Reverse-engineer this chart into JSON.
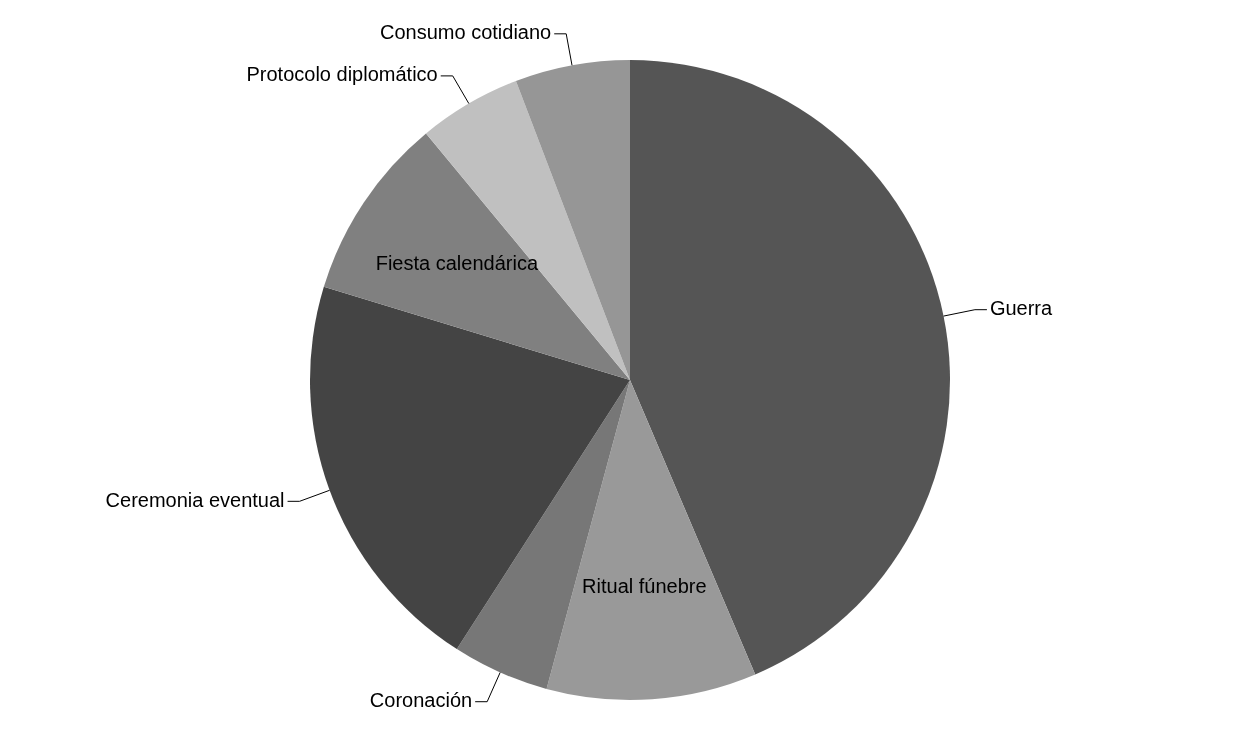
{
  "chart_data": {
    "type": "pie",
    "categories": [
      "Guerra",
      "Ritual fúnebre",
      "Coronación",
      "Ceremonia eventual",
      "Fiesta calendárica",
      "Protocolo diplomático",
      "Consumo cotidiano"
    ],
    "values": [
      43.6,
      10.6,
      4.9,
      20.6,
      9.3,
      5.2,
      5.8
    ],
    "colors": [
      "#555555",
      "#999999",
      "#777777",
      "#444444",
      "#808080",
      "#c0c0c0",
      "#969696"
    ]
  }
}
